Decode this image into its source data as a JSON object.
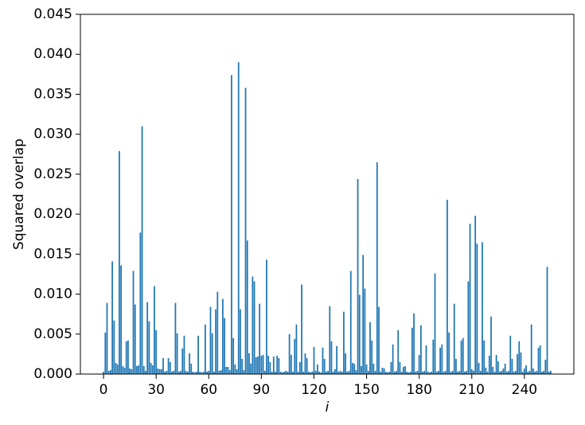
{
  "chart_data": {
    "type": "bar",
    "ylabel": "Squared overlap",
    "xlabel": "i",
    "color": "#1f77b4",
    "x": [
      0,
      1,
      2,
      3,
      4,
      5,
      6,
      7,
      8,
      9,
      10,
      11,
      12,
      13,
      14,
      15,
      16,
      17,
      18,
      19,
      20,
      21,
      22,
      23,
      24,
      25,
      26,
      27,
      28,
      29,
      30,
      31,
      32,
      33,
      34,
      35,
      36,
      37,
      38,
      39,
      40,
      41,
      42,
      43,
      44,
      45,
      46,
      47,
      48,
      49,
      50,
      51,
      52,
      53,
      54,
      55,
      56,
      57,
      58,
      59,
      60,
      61,
      62,
      63,
      64,
      65,
      66,
      67,
      68,
      69,
      70,
      71,
      72,
      73,
      74,
      75,
      76,
      77,
      78,
      79,
      80,
      81,
      82,
      83,
      84,
      85,
      86,
      87,
      88,
      89,
      90,
      91,
      92,
      93,
      94,
      95,
      96,
      97,
      98,
      99,
      100,
      101,
      102,
      103,
      104,
      105,
      106,
      107,
      108,
      109,
      110,
      111,
      112,
      113,
      114,
      115,
      116,
      117,
      118,
      119,
      120,
      121,
      122,
      123,
      124,
      125,
      126,
      127,
      128,
      129,
      130,
      131,
      132,
      133,
      134,
      135,
      136,
      137,
      138,
      139,
      140,
      141,
      142,
      143,
      144,
      145,
      146,
      147,
      148,
      149,
      150,
      151,
      152,
      153,
      154,
      155,
      156,
      157,
      158,
      159,
      160,
      161,
      162,
      163,
      164,
      165,
      166,
      167,
      168,
      169,
      170,
      171,
      172,
      173,
      174,
      175,
      176,
      177,
      178,
      179,
      180,
      181,
      182,
      183,
      184,
      185,
      186,
      187,
      188,
      189,
      190,
      191,
      192,
      193,
      194,
      195,
      196,
      197,
      198,
      199,
      200,
      201,
      202,
      203,
      204,
      205,
      206,
      207,
      208,
      209,
      210,
      211,
      212,
      213,
      214,
      215,
      216,
      217,
      218,
      219,
      220,
      221,
      222,
      223,
      224,
      225,
      226,
      227,
      228,
      229,
      230,
      231,
      232,
      233,
      234,
      235,
      236,
      237,
      238,
      239,
      240,
      241,
      242,
      243,
      244,
      245,
      246,
      247,
      248,
      249,
      250,
      251,
      252,
      253,
      254,
      255
    ],
    "values": [
      0.0003,
      0.0052,
      0.0089,
      0.0004,
      0.0005,
      0.0141,
      0.0067,
      0.0014,
      0.0012,
      0.0279,
      0.0136,
      0.001,
      0.0008,
      0.0041,
      0.0042,
      0.0007,
      0.0006,
      0.0129,
      0.0087,
      0.001,
      0.0011,
      0.0177,
      0.031,
      0.001,
      0.0004,
      0.009,
      0.0066,
      0.0014,
      0.0011,
      0.011,
      0.0055,
      0.0007,
      0.0006,
      0.0006,
      0.002,
      0.0003,
      0.0004,
      0.002,
      0.0015,
      0.0003,
      0.0004,
      0.0089,
      0.0051,
      0.0003,
      0.0004,
      0.0032,
      0.0048,
      0.0004,
      0.0003,
      0.0026,
      0.0013,
      0.0003,
      0.0002,
      0.0003,
      0.0048,
      0.0003,
      0.0002,
      0.0003,
      0.0062,
      0.0003,
      0.0004,
      0.0084,
      0.0051,
      0.0003,
      0.0081,
      0.0103,
      0.0004,
      0.0005,
      0.0094,
      0.007,
      0.0009,
      0.0009,
      0.0005,
      0.0374,
      0.0045,
      0.0012,
      0.0006,
      0.039,
      0.0081,
      0.0019,
      0.0005,
      0.0358,
      0.0167,
      0.0026,
      0.0013,
      0.0122,
      0.0116,
      0.0021,
      0.0022,
      0.0088,
      0.0023,
      0.0024,
      0.0004,
      0.0143,
      0.0023,
      0.0015,
      0.0003,
      0.0022,
      0.0003,
      0.0023,
      0.002,
      0.0003,
      0.0002,
      0.0003,
      0.0004,
      0.0003,
      0.005,
      0.0024,
      0.0003,
      0.0044,
      0.0062,
      0.0003,
      0.0015,
      0.0112,
      0.0003,
      0.0026,
      0.002,
      0.0003,
      0.0002,
      0.0003,
      0.0034,
      0.0004,
      0.0012,
      0.0003,
      0.0002,
      0.0033,
      0.0019,
      0.0003,
      0.0004,
      0.0085,
      0.0041,
      0.0003,
      0.0006,
      0.0035,
      0.0003,
      0.0004,
      0.0003,
      0.0078,
      0.0026,
      0.0003,
      0.0004,
      0.0129,
      0.0014,
      0.0013,
      0.0005,
      0.0244,
      0.0099,
      0.001,
      0.0149,
      0.0107,
      0.0012,
      0.0004,
      0.0065,
      0.0042,
      0.0013,
      0.0004,
      0.0265,
      0.0084,
      0.0003,
      0.0008,
      0.0007,
      0.0003,
      0.0002,
      0.0003,
      0.0015,
      0.0037,
      0.0003,
      0.0004,
      0.0055,
      0.0015,
      0.0003,
      0.0009,
      0.001,
      0.0003,
      0.0002,
      0.0003,
      0.0058,
      0.0076,
      0.0003,
      0.0004,
      0.0024,
      0.0061,
      0.0003,
      0.0004,
      0.0036,
      0.0003,
      0.0002,
      0.0003,
      0.0043,
      0.0126,
      0.0003,
      0.0004,
      0.0033,
      0.0037,
      0.0003,
      0.0004,
      0.0218,
      0.0052,
      0.0003,
      0.0004,
      0.0088,
      0.0019,
      0.0003,
      0.0004,
      0.0042,
      0.0045,
      0.0003,
      0.0004,
      0.0116,
      0.0188,
      0.0006,
      0.0004,
      0.0198,
      0.0163,
      0.0014,
      0.0004,
      0.0165,
      0.0042,
      0.0008,
      0.0003,
      0.0023,
      0.0072,
      0.0009,
      0.0003,
      0.0024,
      0.0016,
      0.0003,
      0.0004,
      0.0007,
      0.0013,
      0.0003,
      0.0004,
      0.0048,
      0.0019,
      0.0003,
      0.0004,
      0.0025,
      0.0041,
      0.0027,
      0.0003,
      0.0007,
      0.0011,
      0.0003,
      0.0004,
      0.0062,
      0.0007,
      0.0003,
      0.0004,
      0.0033,
      0.0036,
      0.0003,
      0.0004,
      0.0018,
      0.0134,
      0.0003,
      0.0004
    ],
    "xlim": [
      -13.2,
      268.2
    ],
    "xticks": [
      0,
      30,
      60,
      90,
      120,
      150,
      180,
      210,
      240
    ],
    "ylim": [
      0,
      0.045
    ],
    "yticks": [
      {
        "value": 0,
        "label": "0.000"
      },
      {
        "value": 0.005,
        "label": "0.005"
      },
      {
        "value": 0.01,
        "label": "0.010"
      },
      {
        "value": 0.015,
        "label": "0.015"
      },
      {
        "value": 0.02,
        "label": "0.020"
      },
      {
        "value": 0.025,
        "label": "0.025"
      },
      {
        "value": 0.03,
        "label": "0.030"
      },
      {
        "value": 0.035,
        "label": "0.035"
      },
      {
        "value": 0.04,
        "label": "0.040"
      },
      {
        "value": 0.045,
        "label": "0.045"
      }
    ],
    "grid": false
  }
}
